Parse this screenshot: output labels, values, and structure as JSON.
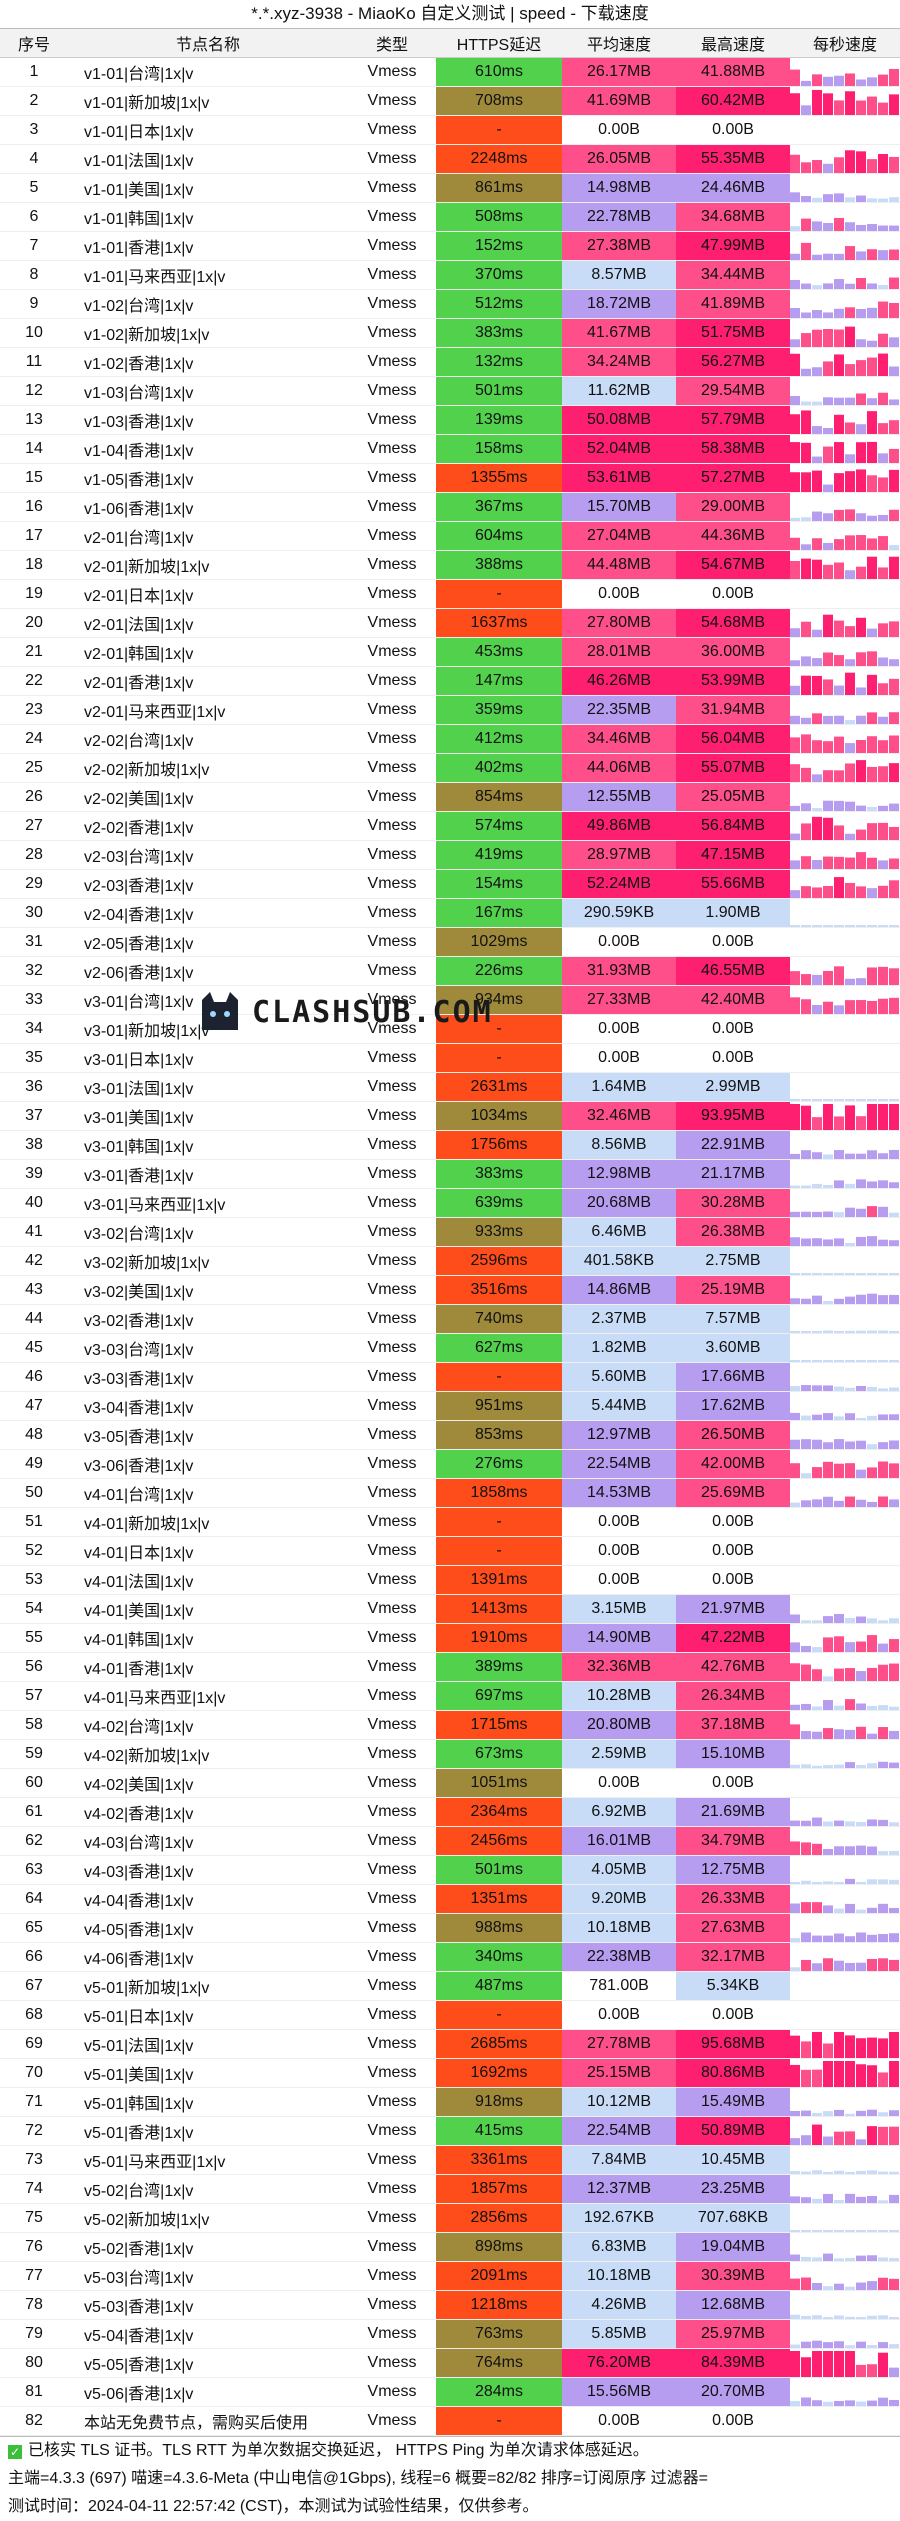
{
  "title": "*.*.xyz-3938 - MiaoKo 自定义测试 | speed - 下载速度",
  "columns": [
    "序号",
    "节点名称",
    "类型",
    "HTTPS延迟",
    "平均速度",
    "最高速度",
    "每秒速度"
  ],
  "rows": [
    [
      "1",
      "v1-01|台湾|1x|v",
      "Vmess",
      "610ms",
      "26.17MB",
      "41.88MB"
    ],
    [
      "2",
      "v1-01|新加坡|1x|v",
      "Vmess",
      "708ms",
      "41.69MB",
      "60.42MB"
    ],
    [
      "3",
      "v1-01|日本|1x|v",
      "Vmess",
      "-",
      "0.00B",
      "0.00B"
    ],
    [
      "4",
      "v1-01|法国|1x|v",
      "Vmess",
      "2248ms",
      "26.05MB",
      "55.35MB"
    ],
    [
      "5",
      "v1-01|美国|1x|v",
      "Vmess",
      "861ms",
      "14.98MB",
      "24.46MB"
    ],
    [
      "6",
      "v1-01|韩国|1x|v",
      "Vmess",
      "508ms",
      "22.78MB",
      "34.68MB"
    ],
    [
      "7",
      "v1-01|香港|1x|v",
      "Vmess",
      "152ms",
      "27.38MB",
      "47.99MB"
    ],
    [
      "8",
      "v1-01|马来西亚|1x|v",
      "Vmess",
      "370ms",
      "8.57MB",
      "34.44MB"
    ],
    [
      "9",
      "v1-02|台湾|1x|v",
      "Vmess",
      "512ms",
      "18.72MB",
      "41.89MB"
    ],
    [
      "10",
      "v1-02|新加坡|1x|v",
      "Vmess",
      "383ms",
      "41.67MB",
      "51.75MB"
    ],
    [
      "11",
      "v1-02|香港|1x|v",
      "Vmess",
      "132ms",
      "34.24MB",
      "56.27MB"
    ],
    [
      "12",
      "v1-03|台湾|1x|v",
      "Vmess",
      "501ms",
      "11.62MB",
      "29.54MB"
    ],
    [
      "13",
      "v1-03|香港|1x|v",
      "Vmess",
      "139ms",
      "50.08MB",
      "57.79MB"
    ],
    [
      "14",
      "v1-04|香港|1x|v",
      "Vmess",
      "158ms",
      "52.04MB",
      "58.38MB"
    ],
    [
      "15",
      "v1-05|香港|1x|v",
      "Vmess",
      "1355ms",
      "53.61MB",
      "57.27MB"
    ],
    [
      "16",
      "v1-06|香港|1x|v",
      "Vmess",
      "367ms",
      "15.70MB",
      "29.00MB"
    ],
    [
      "17",
      "v2-01|台湾|1x|v",
      "Vmess",
      "604ms",
      "27.04MB",
      "44.36MB"
    ],
    [
      "18",
      "v2-01|新加坡|1x|v",
      "Vmess",
      "388ms",
      "44.48MB",
      "54.67MB"
    ],
    [
      "19",
      "v2-01|日本|1x|v",
      "Vmess",
      "-",
      "0.00B",
      "0.00B"
    ],
    [
      "20",
      "v2-01|法国|1x|v",
      "Vmess",
      "1637ms",
      "27.80MB",
      "54.68MB"
    ],
    [
      "21",
      "v2-01|韩国|1x|v",
      "Vmess",
      "453ms",
      "28.01MB",
      "36.00MB"
    ],
    [
      "22",
      "v2-01|香港|1x|v",
      "Vmess",
      "147ms",
      "46.26MB",
      "53.99MB"
    ],
    [
      "23",
      "v2-01|马来西亚|1x|v",
      "Vmess",
      "359ms",
      "22.35MB",
      "31.94MB"
    ],
    [
      "24",
      "v2-02|台湾|1x|v",
      "Vmess",
      "412ms",
      "34.46MB",
      "56.04MB"
    ],
    [
      "25",
      "v2-02|新加坡|1x|v",
      "Vmess",
      "402ms",
      "44.06MB",
      "55.07MB"
    ],
    [
      "26",
      "v2-02|美国|1x|v",
      "Vmess",
      "854ms",
      "12.55MB",
      "25.05MB"
    ],
    [
      "27",
      "v2-02|香港|1x|v",
      "Vmess",
      "574ms",
      "49.86MB",
      "56.84MB"
    ],
    [
      "28",
      "v2-03|台湾|1x|v",
      "Vmess",
      "419ms",
      "28.97MB",
      "47.15MB"
    ],
    [
      "29",
      "v2-03|香港|1x|v",
      "Vmess",
      "154ms",
      "52.24MB",
      "55.66MB"
    ],
    [
      "30",
      "v2-04|香港|1x|v",
      "Vmess",
      "167ms",
      "290.59KB",
      "1.90MB"
    ],
    [
      "31",
      "v2-05|香港|1x|v",
      "Vmess",
      "1029ms",
      "0.00B",
      "0.00B"
    ],
    [
      "32",
      "v2-06|香港|1x|v",
      "Vmess",
      "226ms",
      "31.93MB",
      "46.55MB"
    ],
    [
      "33",
      "v3-01|台湾|1x|v",
      "Vmess",
      "934ms",
      "27.33MB",
      "42.40MB"
    ],
    [
      "34",
      "v3-01|新加坡|1x|v",
      "Vmess",
      "-",
      "0.00B",
      "0.00B"
    ],
    [
      "35",
      "v3-01|日本|1x|v",
      "Vmess",
      "-",
      "0.00B",
      "0.00B"
    ],
    [
      "36",
      "v3-01|法国|1x|v",
      "Vmess",
      "2631ms",
      "1.64MB",
      "2.99MB"
    ],
    [
      "37",
      "v3-01|美国|1x|v",
      "Vmess",
      "1034ms",
      "32.46MB",
      "93.95MB"
    ],
    [
      "38",
      "v3-01|韩国|1x|v",
      "Vmess",
      "1756ms",
      "8.56MB",
      "22.91MB"
    ],
    [
      "39",
      "v3-01|香港|1x|v",
      "Vmess",
      "383ms",
      "12.98MB",
      "21.17MB"
    ],
    [
      "40",
      "v3-01|马来西亚|1x|v",
      "Vmess",
      "639ms",
      "20.68MB",
      "30.28MB"
    ],
    [
      "41",
      "v3-02|台湾|1x|v",
      "Vmess",
      "933ms",
      "6.46MB",
      "26.38MB"
    ],
    [
      "42",
      "v3-02|新加坡|1x|v",
      "Vmess",
      "2596ms",
      "401.58KB",
      "2.75MB"
    ],
    [
      "43",
      "v3-02|美国|1x|v",
      "Vmess",
      "3516ms",
      "14.86MB",
      "25.19MB"
    ],
    [
      "44",
      "v3-02|香港|1x|v",
      "Vmess",
      "740ms",
      "2.37MB",
      "7.57MB"
    ],
    [
      "45",
      "v3-03|台湾|1x|v",
      "Vmess",
      "627ms",
      "1.82MB",
      "3.60MB"
    ],
    [
      "46",
      "v3-03|香港|1x|v",
      "Vmess",
      "-",
      "5.60MB",
      "17.66MB"
    ],
    [
      "47",
      "v3-04|香港|1x|v",
      "Vmess",
      "951ms",
      "5.44MB",
      "17.62MB"
    ],
    [
      "48",
      "v3-05|香港|1x|v",
      "Vmess",
      "853ms",
      "12.97MB",
      "26.50MB"
    ],
    [
      "49",
      "v3-06|香港|1x|v",
      "Vmess",
      "276ms",
      "22.54MB",
      "42.00MB"
    ],
    [
      "50",
      "v4-01|台湾|1x|v",
      "Vmess",
      "1858ms",
      "14.53MB",
      "25.69MB"
    ],
    [
      "51",
      "v4-01|新加坡|1x|v",
      "Vmess",
      "-",
      "0.00B",
      "0.00B"
    ],
    [
      "52",
      "v4-01|日本|1x|v",
      "Vmess",
      "-",
      "0.00B",
      "0.00B"
    ],
    [
      "53",
      "v4-01|法国|1x|v",
      "Vmess",
      "1391ms",
      "0.00B",
      "0.00B"
    ],
    [
      "54",
      "v4-01|美国|1x|v",
      "Vmess",
      "1413ms",
      "3.15MB",
      "21.97MB"
    ],
    [
      "55",
      "v4-01|韩国|1x|v",
      "Vmess",
      "1910ms",
      "14.90MB",
      "47.22MB"
    ],
    [
      "56",
      "v4-01|香港|1x|v",
      "Vmess",
      "389ms",
      "32.36MB",
      "42.76MB"
    ],
    [
      "57",
      "v4-01|马来西亚|1x|v",
      "Vmess",
      "697ms",
      "10.28MB",
      "26.34MB"
    ],
    [
      "58",
      "v4-02|台湾|1x|v",
      "Vmess",
      "1715ms",
      "20.80MB",
      "37.18MB"
    ],
    [
      "59",
      "v4-02|新加坡|1x|v",
      "Vmess",
      "673ms",
      "2.59MB",
      "15.10MB"
    ],
    [
      "60",
      "v4-02|美国|1x|v",
      "Vmess",
      "1051ms",
      "0.00B",
      "0.00B"
    ],
    [
      "61",
      "v4-02|香港|1x|v",
      "Vmess",
      "2364ms",
      "6.92MB",
      "21.69MB"
    ],
    [
      "62",
      "v4-03|台湾|1x|v",
      "Vmess",
      "2456ms",
      "16.01MB",
      "34.79MB"
    ],
    [
      "63",
      "v4-03|香港|1x|v",
      "Vmess",
      "501ms",
      "4.05MB",
      "12.75MB"
    ],
    [
      "64",
      "v4-04|香港|1x|v",
      "Vmess",
      "1351ms",
      "9.20MB",
      "26.33MB"
    ],
    [
      "65",
      "v4-05|香港|1x|v",
      "Vmess",
      "988ms",
      "10.18MB",
      "27.63MB"
    ],
    [
      "66",
      "v4-06|香港|1x|v",
      "Vmess",
      "340ms",
      "22.38MB",
      "32.17MB"
    ],
    [
      "67",
      "v5-01|新加坡|1x|v",
      "Vmess",
      "487ms",
      "781.00B",
      "5.34KB"
    ],
    [
      "68",
      "v5-01|日本|1x|v",
      "Vmess",
      "-",
      "0.00B",
      "0.00B"
    ],
    [
      "69",
      "v5-01|法国|1x|v",
      "Vmess",
      "2685ms",
      "27.78MB",
      "95.68MB"
    ],
    [
      "70",
      "v5-01|美国|1x|v",
      "Vmess",
      "1692ms",
      "25.15MB",
      "80.86MB"
    ],
    [
      "71",
      "v5-01|韩国|1x|v",
      "Vmess",
      "918ms",
      "10.12MB",
      "15.49MB"
    ],
    [
      "72",
      "v5-01|香港|1x|v",
      "Vmess",
      "415ms",
      "22.54MB",
      "50.89MB"
    ],
    [
      "73",
      "v5-01|马来西亚|1x|v",
      "Vmess",
      "3361ms",
      "7.84MB",
      "10.45MB"
    ],
    [
      "74",
      "v5-02|台湾|1x|v",
      "Vmess",
      "1857ms",
      "12.37MB",
      "23.25MB"
    ],
    [
      "75",
      "v5-02|新加坡|1x|v",
      "Vmess",
      "2856ms",
      "192.67KB",
      "707.68KB"
    ],
    [
      "76",
      "v5-02|香港|1x|v",
      "Vmess",
      "898ms",
      "6.83MB",
      "19.04MB"
    ],
    [
      "77",
      "v5-03|台湾|1x|v",
      "Vmess",
      "2091ms",
      "10.18MB",
      "30.39MB"
    ],
    [
      "78",
      "v5-03|香港|1x|v",
      "Vmess",
      "1218ms",
      "4.26MB",
      "12.68MB"
    ],
    [
      "79",
      "v5-04|香港|1x|v",
      "Vmess",
      "763ms",
      "5.85MB",
      "25.97MB"
    ],
    [
      "80",
      "v5-05|香港|1x|v",
      "Vmess",
      "764ms",
      "76.20MB",
      "84.39MB"
    ],
    [
      "81",
      "v5-06|香港|1x|v",
      "Vmess",
      "284ms",
      "15.56MB",
      "20.70MB"
    ],
    [
      "82",
      "本站无免费节点，需购买后使用",
      "Vmess",
      "-",
      "0.00B",
      "0.00B"
    ]
  ],
  "footer": {
    "line1": "已核实 TLS 证书。TLS RTT 为单次数据交换延迟， HTTPS Ping 为单次请求体感延迟。",
    "line2": "主端=4.3.3 (697) 喵速=4.3.6-Meta (中山电信@1Gbps), 线程=6 概要=82/82 排序=订阅原序 过滤器=",
    "line3": "测试时间：2024-04-11 22:57:42 (CST)，本测试为试验性结果，仅供参考。"
  },
  "watermark": "CLASHSUB.COM",
  "colors": {
    "lat_green": "#52d14d",
    "lat_olive": "#9f8a3c",
    "lat_red": "#ff4c1b",
    "spd_blue": "#c8dcf8",
    "spd_purple": "#b79df0",
    "spd_pink": "#ff4f8a",
    "spd_hot": "#ff1f70"
  }
}
